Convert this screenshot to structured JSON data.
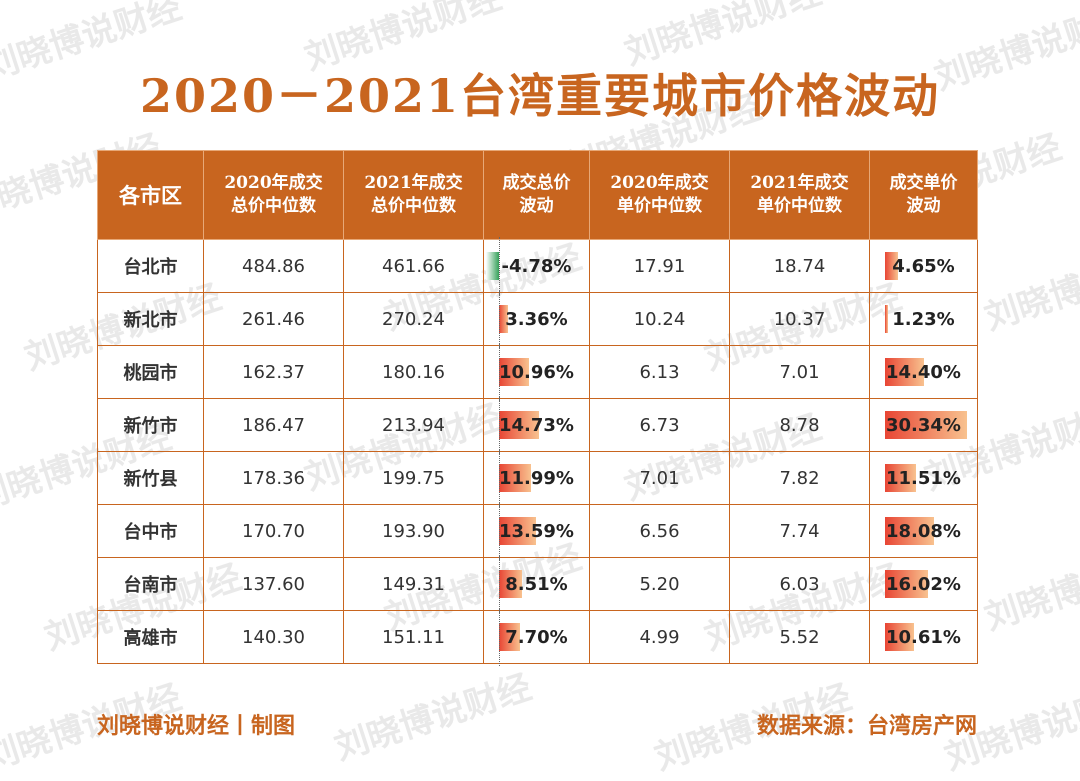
{
  "title": "2020－2021台湾重要城市价格波动",
  "watermark_text": "刘晓博说财经",
  "chart_data": {
    "type": "table",
    "columns": [
      "各市区",
      "2020年成交\n总价中位数",
      "2021年成交\n总价中位数",
      "成交总价\n波动",
      "2020年成交\n单价中位数",
      "2021年成交\n单价中位数",
      "成交单价\n波动"
    ],
    "rows": [
      {
        "city": "台北市",
        "total_2020": "484.86",
        "total_2021": "461.66",
        "total_change": -4.78,
        "total_change_label": "-4.78%",
        "unit_2020": "17.91",
        "unit_2021": "18.74",
        "unit_change": 4.65,
        "unit_change_label": "4.65%"
      },
      {
        "city": "新北市",
        "total_2020": "261.46",
        "total_2021": "270.24",
        "total_change": 3.36,
        "total_change_label": "3.36%",
        "unit_2020": "10.24",
        "unit_2021": "10.37",
        "unit_change": 1.23,
        "unit_change_label": "1.23%"
      },
      {
        "city": "桃园市",
        "total_2020": "162.37",
        "total_2021": "180.16",
        "total_change": 10.96,
        "total_change_label": "10.96%",
        "unit_2020": "6.13",
        "unit_2021": "7.01",
        "unit_change": 14.4,
        "unit_change_label": "14.40%"
      },
      {
        "city": "新竹市",
        "total_2020": "186.47",
        "total_2021": "213.94",
        "total_change": 14.73,
        "total_change_label": "14.73%",
        "unit_2020": "6.73",
        "unit_2021": "8.78",
        "unit_change": 30.34,
        "unit_change_label": "30.34%"
      },
      {
        "city": "新竹县",
        "total_2020": "178.36",
        "total_2021": "199.75",
        "total_change": 11.99,
        "total_change_label": "11.99%",
        "unit_2020": "7.01",
        "unit_2021": "7.82",
        "unit_change": 11.51,
        "unit_change_label": "11.51%"
      },
      {
        "city": "台中市",
        "total_2020": "170.70",
        "total_2021": "193.90",
        "total_change": 13.59,
        "total_change_label": "13.59%",
        "unit_2020": "6.56",
        "unit_2021": "7.74",
        "unit_change": 18.08,
        "unit_change_label": "18.08%"
      },
      {
        "city": "台南市",
        "total_2020": "137.60",
        "total_2021": "149.31",
        "total_change": 8.51,
        "total_change_label": "8.51%",
        "unit_2020": "5.20",
        "unit_2021": "6.03",
        "unit_change": 16.02,
        "unit_change_label": "16.02%"
      },
      {
        "city": "高雄市",
        "total_2020": "140.30",
        "total_2021": "151.11",
        "total_change": 7.7,
        "total_change_label": "7.70%",
        "unit_2020": "4.99",
        "unit_2021": "5.52",
        "unit_change": 10.61,
        "unit_change_label": "10.61%"
      }
    ]
  },
  "footer": {
    "left": "刘晓博说财经丨制图",
    "right": "数据来源：台湾房产网"
  },
  "colors": {
    "brand": "#c8651f",
    "bar_positive_start": "#e84534",
    "bar_positive_end": "#f8c28f",
    "bar_negative": "#35a15a"
  }
}
